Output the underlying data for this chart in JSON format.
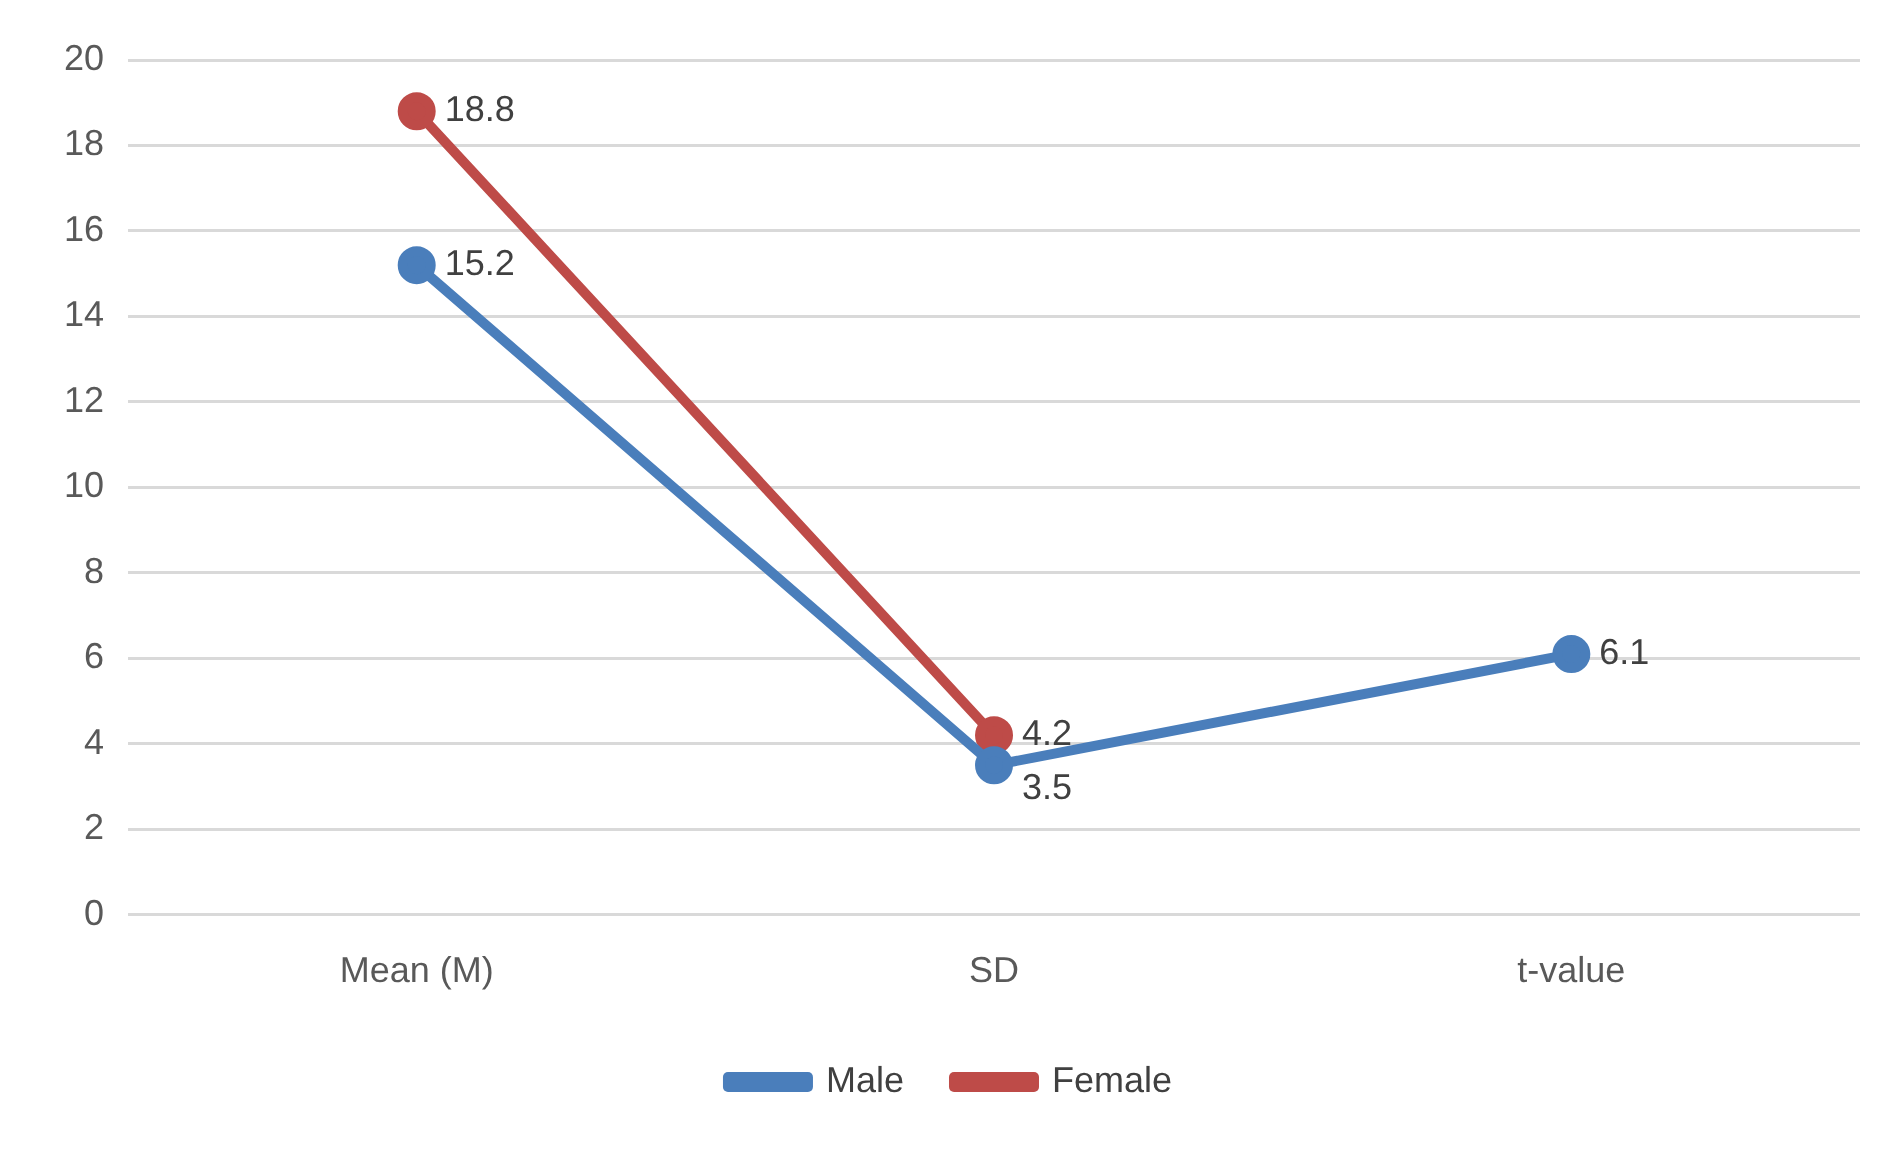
{
  "chart_data": {
    "type": "line",
    "categories": [
      "Mean (M)",
      "SD",
      "t-value"
    ],
    "series": [
      {
        "name": "Male",
        "color": "#4a7ebb",
        "values": [
          15.2,
          3.5,
          6.1
        ]
      },
      {
        "name": "Female",
        "color": "#be4b48",
        "values": [
          18.8,
          4.2,
          null
        ]
      }
    ],
    "ylim": [
      0,
      20
    ],
    "yticks": [
      0,
      2,
      4,
      6,
      8,
      10,
      12,
      14,
      16,
      18,
      20
    ],
    "grid": "y",
    "legend": "bottom",
    "marker": "circle",
    "line_style": "solid",
    "data_labels": true
  }
}
